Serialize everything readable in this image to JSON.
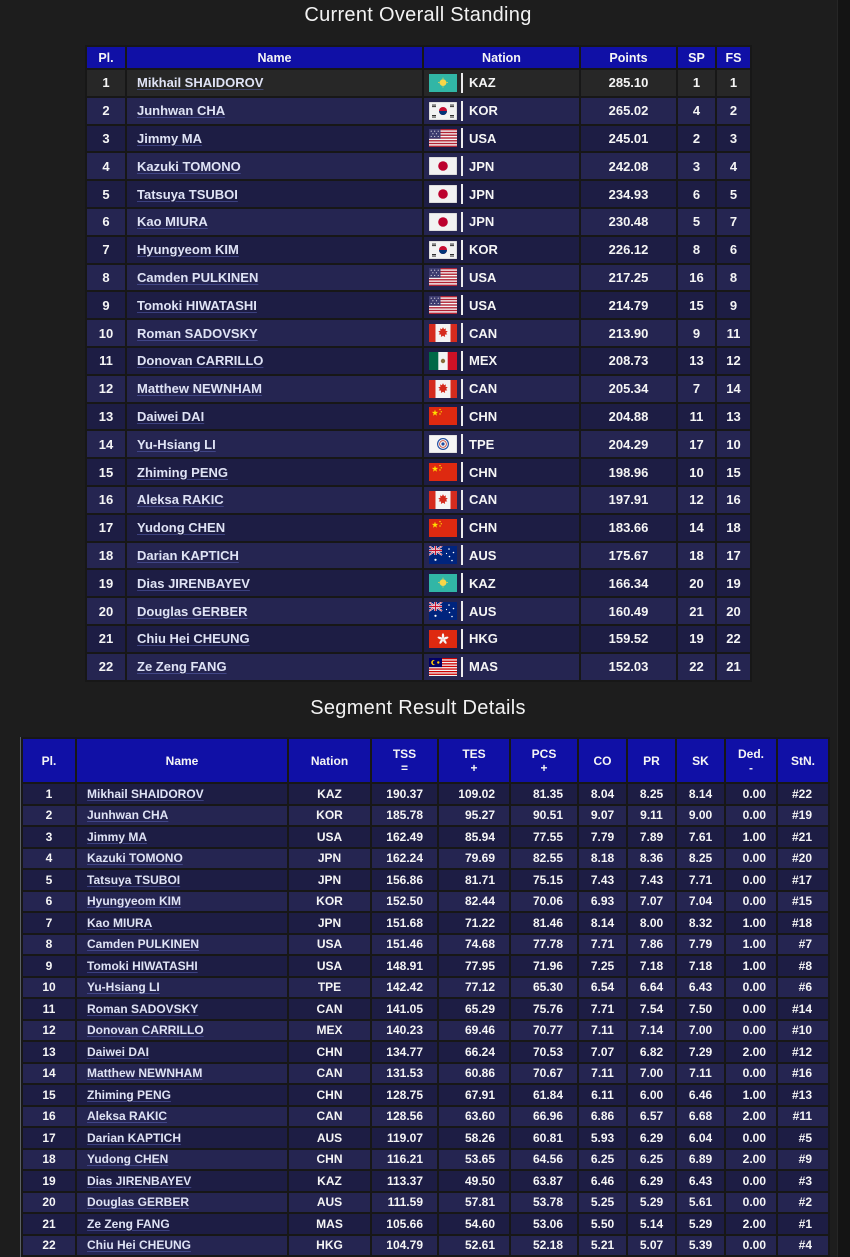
{
  "colors": {
    "page_bg": "#1d1d1d",
    "header_blue": "#1010a6",
    "row_dark": "#1d1d44",
    "row_light": "#252551",
    "leader_row": "#272727"
  },
  "overall": {
    "title": "Current Overall Standing",
    "columns": {
      "pl": "Pl.",
      "name": "Name",
      "nation": "Nation",
      "points": "Points",
      "sp": "SP",
      "fs": "FS"
    },
    "rows": [
      {
        "pl": "1",
        "name": "Mikhail SHAIDOROV",
        "nation": "KAZ",
        "points": "285.10",
        "sp": "1",
        "fs": "1"
      },
      {
        "pl": "2",
        "name": "Junhwan CHA",
        "nation": "KOR",
        "points": "265.02",
        "sp": "4",
        "fs": "2"
      },
      {
        "pl": "3",
        "name": "Jimmy MA",
        "nation": "USA",
        "points": "245.01",
        "sp": "2",
        "fs": "3"
      },
      {
        "pl": "4",
        "name": "Kazuki TOMONO",
        "nation": "JPN",
        "points": "242.08",
        "sp": "3",
        "fs": "4"
      },
      {
        "pl": "5",
        "name": "Tatsuya TSUBOI",
        "nation": "JPN",
        "points": "234.93",
        "sp": "6",
        "fs": "5"
      },
      {
        "pl": "6",
        "name": "Kao MIURA",
        "nation": "JPN",
        "points": "230.48",
        "sp": "5",
        "fs": "7"
      },
      {
        "pl": "7",
        "name": "Hyungyeom KIM",
        "nation": "KOR",
        "points": "226.12",
        "sp": "8",
        "fs": "6"
      },
      {
        "pl": "8",
        "name": "Camden PULKINEN",
        "nation": "USA",
        "points": "217.25",
        "sp": "16",
        "fs": "8"
      },
      {
        "pl": "9",
        "name": "Tomoki HIWATASHI",
        "nation": "USA",
        "points": "214.79",
        "sp": "15",
        "fs": "9"
      },
      {
        "pl": "10",
        "name": "Roman SADOVSKY",
        "nation": "CAN",
        "points": "213.90",
        "sp": "9",
        "fs": "11"
      },
      {
        "pl": "11",
        "name": "Donovan CARRILLO",
        "nation": "MEX",
        "points": "208.73",
        "sp": "13",
        "fs": "12"
      },
      {
        "pl": "12",
        "name": "Matthew NEWNHAM",
        "nation": "CAN",
        "points": "205.34",
        "sp": "7",
        "fs": "14"
      },
      {
        "pl": "13",
        "name": "Daiwei DAI",
        "nation": "CHN",
        "points": "204.88",
        "sp": "11",
        "fs": "13"
      },
      {
        "pl": "14",
        "name": "Yu-Hsiang LI",
        "nation": "TPE",
        "points": "204.29",
        "sp": "17",
        "fs": "10"
      },
      {
        "pl": "15",
        "name": "Zhiming PENG",
        "nation": "CHN",
        "points": "198.96",
        "sp": "10",
        "fs": "15"
      },
      {
        "pl": "16",
        "name": "Aleksa RAKIC",
        "nation": "CAN",
        "points": "197.91",
        "sp": "12",
        "fs": "16"
      },
      {
        "pl": "17",
        "name": "Yudong CHEN",
        "nation": "CHN",
        "points": "183.66",
        "sp": "14",
        "fs": "18"
      },
      {
        "pl": "18",
        "name": "Darian KAPTICH",
        "nation": "AUS",
        "points": "175.67",
        "sp": "18",
        "fs": "17"
      },
      {
        "pl": "19",
        "name": "Dias JIRENBAYEV",
        "nation": "KAZ",
        "points": "166.34",
        "sp": "20",
        "fs": "19"
      },
      {
        "pl": "20",
        "name": "Douglas GERBER",
        "nation": "AUS",
        "points": "160.49",
        "sp": "21",
        "fs": "20"
      },
      {
        "pl": "21",
        "name": "Chiu Hei CHEUNG",
        "nation": "HKG",
        "points": "159.52",
        "sp": "19",
        "fs": "22"
      },
      {
        "pl": "22",
        "name": "Ze Zeng FANG",
        "nation": "MAS",
        "points": "152.03",
        "sp": "22",
        "fs": "21"
      }
    ]
  },
  "segment": {
    "title": "Segment Result Details",
    "columns": {
      "pl": "Pl.",
      "name": "Name",
      "nation": "Nation",
      "tss": "TSS",
      "tss_sym": "=",
      "tes": "TES",
      "tes_sym": "+",
      "pcs": "PCS",
      "pcs_sym": "+",
      "co": "CO",
      "pr": "PR",
      "sk": "SK",
      "ded": "Ded.",
      "ded_sym": "-",
      "stn": "StN."
    },
    "rows": [
      {
        "pl": "1",
        "name": "Mikhail SHAIDOROV",
        "nation": "KAZ",
        "tss": "190.37",
        "tes": "109.02",
        "pcs": "81.35",
        "co": "8.04",
        "pr": "8.25",
        "sk": "8.14",
        "ded": "0.00",
        "stn": "#22"
      },
      {
        "pl": "2",
        "name": "Junhwan CHA",
        "nation": "KOR",
        "tss": "185.78",
        "tes": "95.27",
        "pcs": "90.51",
        "co": "9.07",
        "pr": "9.11",
        "sk": "9.00",
        "ded": "0.00",
        "stn": "#19"
      },
      {
        "pl": "3",
        "name": "Jimmy MA",
        "nation": "USA",
        "tss": "162.49",
        "tes": "85.94",
        "pcs": "77.55",
        "co": "7.79",
        "pr": "7.89",
        "sk": "7.61",
        "ded": "1.00",
        "stn": "#21"
      },
      {
        "pl": "4",
        "name": "Kazuki TOMONO",
        "nation": "JPN",
        "tss": "162.24",
        "tes": "79.69",
        "pcs": "82.55",
        "co": "8.18",
        "pr": "8.36",
        "sk": "8.25",
        "ded": "0.00",
        "stn": "#20"
      },
      {
        "pl": "5",
        "name": "Tatsuya TSUBOI",
        "nation": "JPN",
        "tss": "156.86",
        "tes": "81.71",
        "pcs": "75.15",
        "co": "7.43",
        "pr": "7.43",
        "sk": "7.71",
        "ded": "0.00",
        "stn": "#17"
      },
      {
        "pl": "6",
        "name": "Hyungyeom KIM",
        "nation": "KOR",
        "tss": "152.50",
        "tes": "82.44",
        "pcs": "70.06",
        "co": "6.93",
        "pr": "7.07",
        "sk": "7.04",
        "ded": "0.00",
        "stn": "#15"
      },
      {
        "pl": "7",
        "name": "Kao MIURA",
        "nation": "JPN",
        "tss": "151.68",
        "tes": "71.22",
        "pcs": "81.46",
        "co": "8.14",
        "pr": "8.00",
        "sk": "8.32",
        "ded": "1.00",
        "stn": "#18"
      },
      {
        "pl": "8",
        "name": "Camden PULKINEN",
        "nation": "USA",
        "tss": "151.46",
        "tes": "74.68",
        "pcs": "77.78",
        "co": "7.71",
        "pr": "7.86",
        "sk": "7.79",
        "ded": "1.00",
        "stn": "#7"
      },
      {
        "pl": "9",
        "name": "Tomoki HIWATASHI",
        "nation": "USA",
        "tss": "148.91",
        "tes": "77.95",
        "pcs": "71.96",
        "co": "7.25",
        "pr": "7.18",
        "sk": "7.18",
        "ded": "1.00",
        "stn": "#8"
      },
      {
        "pl": "10",
        "name": "Yu-Hsiang LI",
        "nation": "TPE",
        "tss": "142.42",
        "tes": "77.12",
        "pcs": "65.30",
        "co": "6.54",
        "pr": "6.64",
        "sk": "6.43",
        "ded": "0.00",
        "stn": "#6"
      },
      {
        "pl": "11",
        "name": "Roman SADOVSKY",
        "nation": "CAN",
        "tss": "141.05",
        "tes": "65.29",
        "pcs": "75.76",
        "co": "7.71",
        "pr": "7.54",
        "sk": "7.50",
        "ded": "0.00",
        "stn": "#14"
      },
      {
        "pl": "12",
        "name": "Donovan CARRILLO",
        "nation": "MEX",
        "tss": "140.23",
        "tes": "69.46",
        "pcs": "70.77",
        "co": "7.11",
        "pr": "7.14",
        "sk": "7.00",
        "ded": "0.00",
        "stn": "#10"
      },
      {
        "pl": "13",
        "name": "Daiwei DAI",
        "nation": "CHN",
        "tss": "134.77",
        "tes": "66.24",
        "pcs": "70.53",
        "co": "7.07",
        "pr": "6.82",
        "sk": "7.29",
        "ded": "2.00",
        "stn": "#12"
      },
      {
        "pl": "14",
        "name": "Matthew NEWNHAM",
        "nation": "CAN",
        "tss": "131.53",
        "tes": "60.86",
        "pcs": "70.67",
        "co": "7.11",
        "pr": "7.00",
        "sk": "7.11",
        "ded": "0.00",
        "stn": "#16"
      },
      {
        "pl": "15",
        "name": "Zhiming PENG",
        "nation": "CHN",
        "tss": "128.75",
        "tes": "67.91",
        "pcs": "61.84",
        "co": "6.11",
        "pr": "6.00",
        "sk": "6.46",
        "ded": "1.00",
        "stn": "#13"
      },
      {
        "pl": "16",
        "name": "Aleksa RAKIC",
        "nation": "CAN",
        "tss": "128.56",
        "tes": "63.60",
        "pcs": "66.96",
        "co": "6.86",
        "pr": "6.57",
        "sk": "6.68",
        "ded": "2.00",
        "stn": "#11"
      },
      {
        "pl": "17",
        "name": "Darian KAPTICH",
        "nation": "AUS",
        "tss": "119.07",
        "tes": "58.26",
        "pcs": "60.81",
        "co": "5.93",
        "pr": "6.29",
        "sk": "6.04",
        "ded": "0.00",
        "stn": "#5"
      },
      {
        "pl": "18",
        "name": "Yudong CHEN",
        "nation": "CHN",
        "tss": "116.21",
        "tes": "53.65",
        "pcs": "64.56",
        "co": "6.25",
        "pr": "6.25",
        "sk": "6.89",
        "ded": "2.00",
        "stn": "#9"
      },
      {
        "pl": "19",
        "name": "Dias JIRENBAYEV",
        "nation": "KAZ",
        "tss": "113.37",
        "tes": "49.50",
        "pcs": "63.87",
        "co": "6.46",
        "pr": "6.29",
        "sk": "6.43",
        "ded": "0.00",
        "stn": "#3"
      },
      {
        "pl": "20",
        "name": "Douglas GERBER",
        "nation": "AUS",
        "tss": "111.59",
        "tes": "57.81",
        "pcs": "53.78",
        "co": "5.25",
        "pr": "5.29",
        "sk": "5.61",
        "ded": "0.00",
        "stn": "#2"
      },
      {
        "pl": "21",
        "name": "Ze Zeng FANG",
        "nation": "MAS",
        "tss": "105.66",
        "tes": "54.60",
        "pcs": "53.06",
        "co": "5.50",
        "pr": "5.14",
        "sk": "5.29",
        "ded": "2.00",
        "stn": "#1"
      },
      {
        "pl": "22",
        "name": "Chiu Hei CHEUNG",
        "nation": "HKG",
        "tss": "104.79",
        "tes": "52.61",
        "pcs": "52.18",
        "co": "5.21",
        "pr": "5.07",
        "sk": "5.39",
        "ded": "0.00",
        "stn": "#4"
      }
    ]
  }
}
